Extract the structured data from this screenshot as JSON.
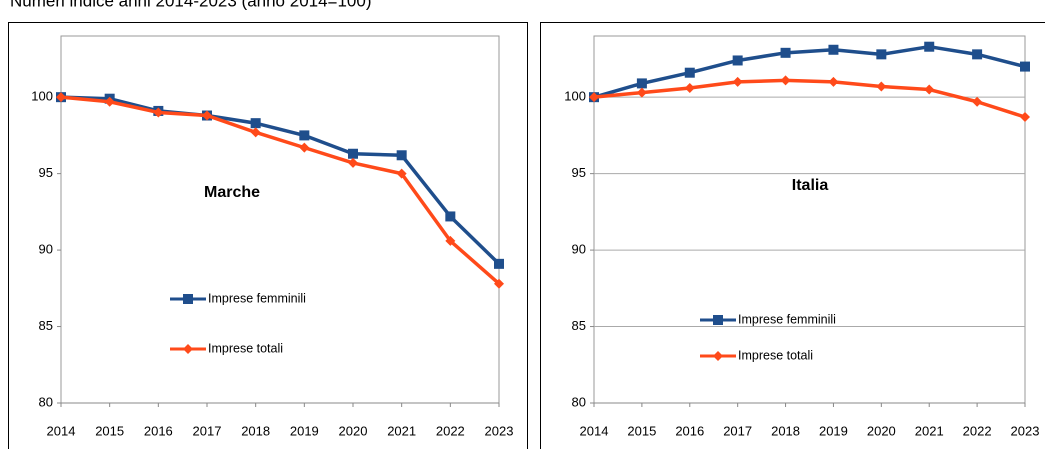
{
  "title": "Numeri indice anni 2014-2023 (anno 2014=100)",
  "chart_data": [
    {
      "type": "line",
      "annotation": "Marche",
      "x": [
        2014,
        2015,
        2016,
        2017,
        2018,
        2019,
        2020,
        2021,
        2022,
        2023
      ],
      "xlim": [
        2014,
        2023
      ],
      "xticks": [
        2014,
        2015,
        2016,
        2017,
        2018,
        2019,
        2020,
        2021,
        2022,
        2023
      ],
      "ylim": [
        80,
        104
      ],
      "yticks": [
        80,
        85,
        90,
        95,
        100
      ],
      "grid": false,
      "series": [
        {
          "name": "Imprese femminili",
          "color": "#1f4e8c",
          "marker": "square",
          "values": [
            100,
            99.9,
            99.1,
            98.8,
            98.3,
            97.5,
            96.3,
            96.2,
            92.2,
            89.1
          ]
        },
        {
          "name": "Imprese totali",
          "color": "#ff4a1a",
          "marker": "diamond",
          "values": [
            100,
            99.7,
            99.0,
            98.8,
            97.7,
            96.7,
            95.7,
            95.0,
            90.6,
            87.8
          ]
        }
      ]
    },
    {
      "type": "line",
      "annotation": "Italia",
      "x": [
        2014,
        2015,
        2016,
        2017,
        2018,
        2019,
        2020,
        2021,
        2022,
        2023
      ],
      "xlim": [
        2014,
        2023
      ],
      "xticks": [
        2014,
        2015,
        2016,
        2017,
        2018,
        2019,
        2020,
        2021,
        2022,
        2023
      ],
      "ylim": [
        80,
        104
      ],
      "yticks": [
        80,
        85,
        90,
        95,
        100
      ],
      "grid": true,
      "series": [
        {
          "name": "Imprese femminili",
          "color": "#1f4e8c",
          "marker": "square",
          "values": [
            100,
            100.9,
            101.6,
            102.4,
            102.9,
            103.1,
            102.8,
            103.3,
            102.8,
            102.0
          ]
        },
        {
          "name": "Imprese totali",
          "color": "#ff4a1a",
          "marker": "diamond",
          "values": [
            100,
            100.3,
            100.6,
            101.0,
            101.1,
            101.0,
            100.7,
            100.5,
            99.7,
            98.7
          ]
        }
      ]
    }
  ]
}
